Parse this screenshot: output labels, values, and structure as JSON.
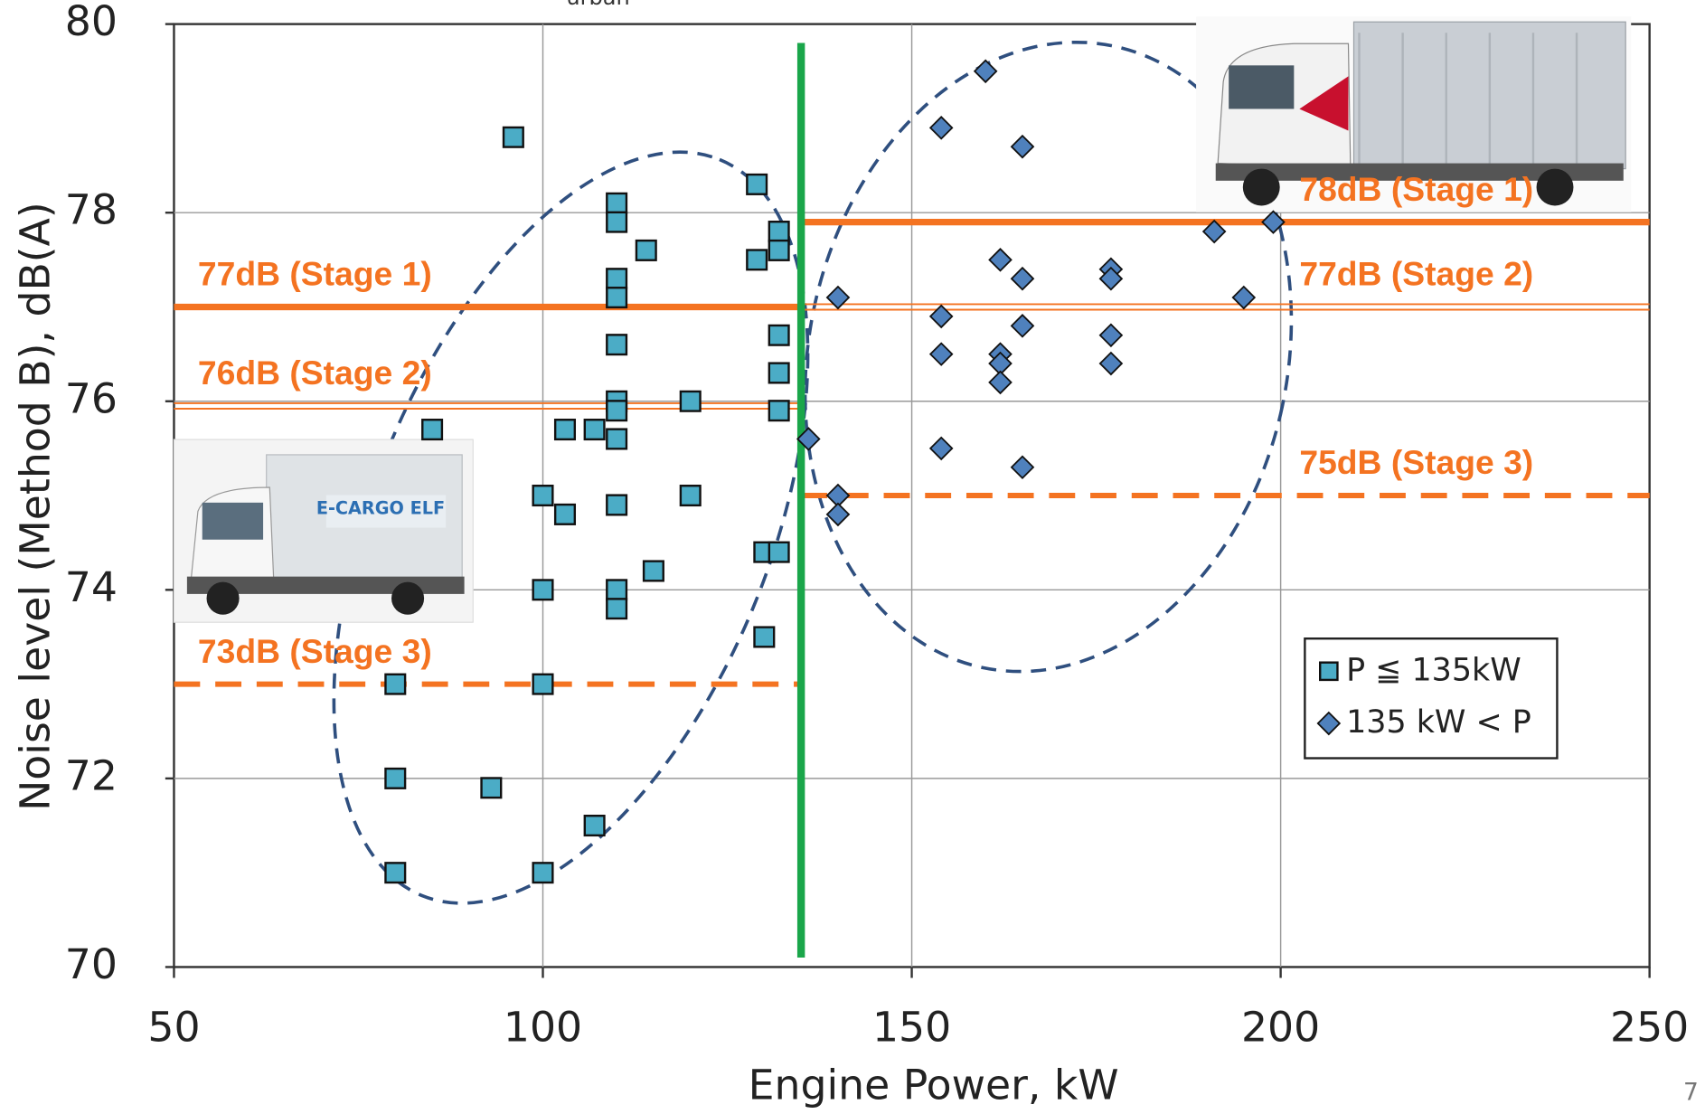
{
  "chart_data": {
    "type": "scatter",
    "annotation_top": "urban",
    "page_number": "7",
    "xlabel": "Engine Power, kW",
    "ylabel": "Noise level (Method B), dB(A)",
    "xlim": [
      50,
      250
    ],
    "xticks": [
      50,
      100,
      150,
      200,
      250
    ],
    "ylim": [
      70,
      80
    ],
    "yticks": [
      70,
      72,
      74,
      76,
      78,
      80
    ],
    "grid": true,
    "legend_position": "lower right",
    "series": [
      {
        "name": "P ≦ 135kW",
        "color": "#4bacc6",
        "marker": "square",
        "x": [
          96,
          129,
          110,
          110,
          132,
          132,
          114,
          129,
          110,
          110,
          132,
          110,
          132,
          110,
          110,
          120,
          132,
          85,
          103,
          107,
          110,
          100,
          120,
          103,
          110,
          115,
          130,
          132,
          100,
          110,
          110,
          130,
          80,
          100,
          80,
          93,
          107,
          80,
          100
        ],
        "values": [
          78.8,
          78.3,
          78.1,
          77.9,
          77.8,
          77.6,
          77.6,
          77.5,
          77.3,
          77.1,
          76.7,
          76.6,
          76.3,
          76.0,
          75.9,
          76.0,
          75.9,
          75.7,
          75.7,
          75.7,
          75.6,
          75.0,
          75.0,
          74.8,
          74.9,
          74.2,
          74.4,
          74.4,
          74.0,
          74.0,
          73.8,
          73.5,
          73.0,
          73.0,
          72.0,
          71.9,
          71.5,
          71.0,
          71.0
        ]
      },
      {
        "name": "135 kW < P",
        "color": "#4f81bd",
        "marker": "diamond",
        "x": [
          160,
          154,
          165,
          191,
          199,
          162,
          165,
          177,
          177,
          140,
          195,
          154,
          165,
          177,
          154,
          162,
          162,
          162,
          177,
          136,
          154,
          165,
          140,
          140
        ],
        "values": [
          79.5,
          78.9,
          78.7,
          77.8,
          77.9,
          77.5,
          77.3,
          77.4,
          77.3,
          77.1,
          77.1,
          76.9,
          76.8,
          76.7,
          76.5,
          76.5,
          76.4,
          76.2,
          76.4,
          75.6,
          75.5,
          75.3,
          75.0,
          74.8
        ]
      }
    ],
    "reference_lines": [
      {
        "label": "77dB (Stage 1)",
        "value": 77,
        "x_range": [
          50,
          135
        ],
        "style": "thick",
        "color": "#f47321"
      },
      {
        "label": "76dB (Stage 2)",
        "value": 75.95,
        "x_range": [
          50,
          135
        ],
        "style": "double",
        "color": "#f47321"
      },
      {
        "label": "73dB (Stage 3)",
        "value": 73,
        "x_range": [
          50,
          135
        ],
        "style": "dashed",
        "color": "#f47321"
      },
      {
        "label": "78dB (Stage 1)",
        "value": 77.9,
        "x_range": [
          135,
          250
        ],
        "style": "thick",
        "color": "#f47321"
      },
      {
        "label": "77dB (Stage 2)",
        "value": 77,
        "x_range": [
          135,
          250
        ],
        "style": "double",
        "color": "#f47321"
      },
      {
        "label": "75dB (Stage 3)",
        "value": 75,
        "x_range": [
          135,
          250
        ],
        "style": "dashed",
        "color": "#f47321"
      }
    ],
    "vertical_line": {
      "value": 135,
      "y_range": [
        70.1,
        79.8
      ],
      "color": "#1aa64a"
    }
  }
}
